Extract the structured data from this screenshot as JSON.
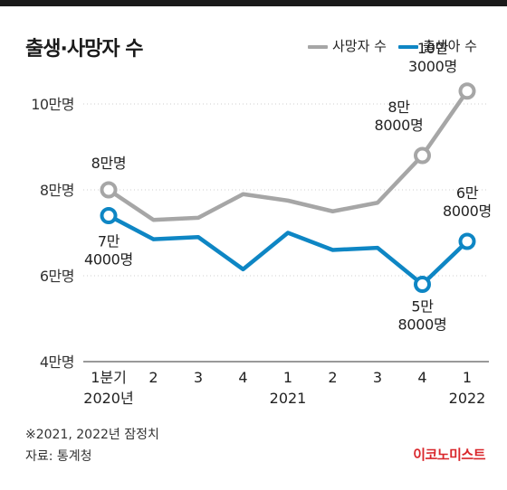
{
  "title": "출생·사망자 수",
  "legend": [
    {
      "label": "사망자 수",
      "color": "#a6a6a6"
    },
    {
      "label": "출생아 수",
      "color": "#0e86c4"
    }
  ],
  "footnote": "※2021, 2022년 잠정치",
  "source": "자료: 통계청",
  "brand": "이코노미스트",
  "chart_data": {
    "type": "line",
    "title": "출생·사망자 수",
    "x": [
      "1분기",
      "2",
      "3",
      "4",
      "1",
      "2",
      "3",
      "4",
      "1"
    ],
    "x_year_labels": [
      {
        "index": 0,
        "label": "2020년"
      },
      {
        "index": 4,
        "label": "2021"
      },
      {
        "index": 8,
        "label": "2022"
      }
    ],
    "y_ticks": [
      "4만명",
      "6만명",
      "8만명",
      "10만명"
    ],
    "y_tick_values": [
      40000,
      60000,
      80000,
      100000
    ],
    "ylim": [
      40000,
      104000
    ],
    "grid": false,
    "legend_position": "top-right",
    "series": [
      {
        "name": "사망자 수",
        "color": "#a6a6a6",
        "values": [
          80000,
          73000,
          73500,
          79000,
          77500,
          75000,
          77000,
          88000,
          103000
        ],
        "labels": [
          {
            "index": 0,
            "lines": [
              "8만명"
            ]
          },
          {
            "index": 7,
            "lines": [
              "8만",
              "8000명"
            ]
          },
          {
            "index": 8,
            "lines": [
              "10만",
              "3000명"
            ]
          }
        ]
      },
      {
        "name": "출생아 수",
        "color": "#0e86c4",
        "values": [
          74000,
          68500,
          69000,
          61500,
          70000,
          66000,
          66500,
          58000,
          68000
        ],
        "labels": [
          {
            "index": 0,
            "lines": [
              "7만",
              "4000명"
            ]
          },
          {
            "index": 7,
            "lines": [
              "5만",
              "8000명"
            ]
          },
          {
            "index": 8,
            "lines": [
              "6만",
              "8000명"
            ]
          }
        ]
      }
    ]
  }
}
